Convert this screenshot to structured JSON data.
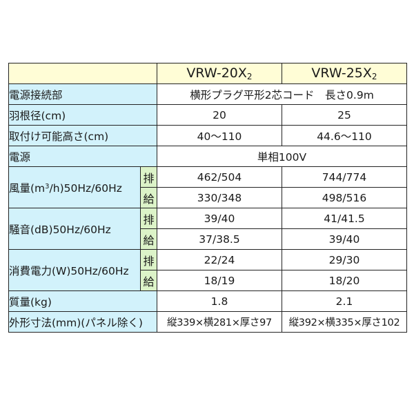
{
  "header": {
    "model1": "VRW-20X",
    "model1_sub": "2",
    "model2": "VRW-25X",
    "model2_sub": "2"
  },
  "rows": {
    "connection": {
      "label": "電源接続部",
      "value": "横形プラグ平形2芯コード　長さ0.9m"
    },
    "blade": {
      "label": "羽根径(cm)",
      "v1": "20",
      "v2": "25"
    },
    "height": {
      "label": "取付け可能高さ(cm)",
      "v1": "40～110",
      "v2": "44.6～110"
    },
    "power": {
      "label": "電源",
      "value": "単相100V"
    },
    "airflow": {
      "label_pre": "風量(m",
      "label_sup": "3",
      "label_post": "/h)50Hz/60Hz",
      "exhaust": "排",
      "supply": "給",
      "ex1": "462/504",
      "ex2": "744/774",
      "su1": "330/348",
      "su2": "498/516"
    },
    "noise": {
      "label": "騒音(dB)50Hz/60Hz",
      "exhaust": "排",
      "supply": "給",
      "ex1": "39/40",
      "ex2": "41/41.5",
      "su1": "37/38.5",
      "su2": "39/40"
    },
    "consumption": {
      "label": "消費電力(W)50Hz/60Hz",
      "exhaust": "排",
      "supply": "給",
      "ex1": "22/24",
      "ex2": "29/30",
      "su1": "18/19",
      "su2": "18/20"
    },
    "mass": {
      "label": "質量(kg)",
      "v1": "1.8",
      "v2": "2.1"
    },
    "dimensions": {
      "label": "外形寸法(mm)(パネル除く)",
      "v1": "縦339×横281×厚さ97",
      "v2": "縦392×横335×厚さ102"
    }
  }
}
